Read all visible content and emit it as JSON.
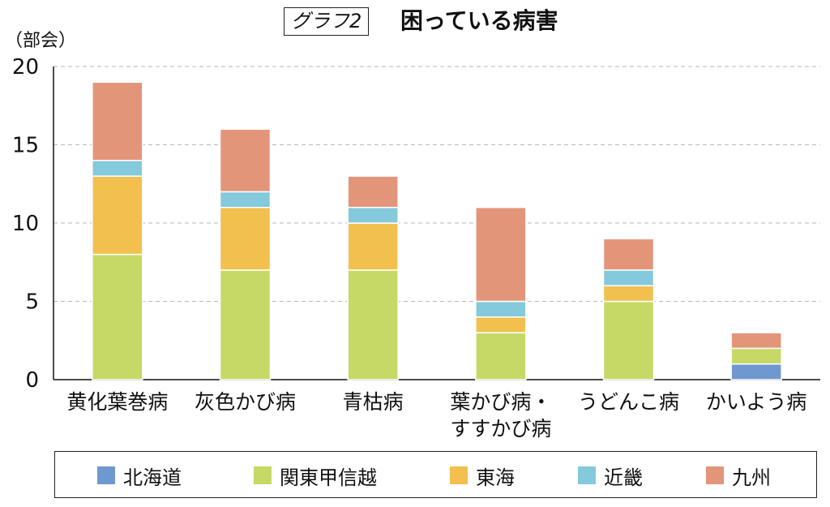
{
  "title": {
    "boxed": "グラフ2",
    "main": "困っている病害"
  },
  "y_unit_label": "（部会）",
  "colors": {
    "北海道": "#7098d0",
    "関東甲信越": "#c6d966",
    "東海": "#f1c04f",
    "近畿": "#84c9dc",
    "九州": "#e3957a"
  },
  "legend": [
    "北海道",
    "関東甲信越",
    "東海",
    "近畿",
    "九州"
  ],
  "chart_data": {
    "type": "bar",
    "stacked": true,
    "categories": [
      "黄化葉巻病",
      "灰色かび病",
      "青枯病",
      "葉かび病・\nすすかび病",
      "うどんこ病",
      "かいよう病"
    ],
    "category_lines": [
      [
        "黄化葉巻病"
      ],
      [
        "灰色かび病"
      ],
      [
        "青枯病"
      ],
      [
        "葉かび病・",
        "すすかび病"
      ],
      [
        "うどんこ病"
      ],
      [
        "かいよう病"
      ]
    ],
    "series": [
      {
        "name": "北海道",
        "values": [
          0,
          0,
          0,
          0,
          0,
          1
        ]
      },
      {
        "name": "関東甲信越",
        "values": [
          8,
          7,
          7,
          3,
          5,
          1
        ]
      },
      {
        "name": "東海",
        "values": [
          5,
          4,
          3,
          1,
          1,
          0
        ]
      },
      {
        "name": "近畿",
        "values": [
          1,
          1,
          1,
          1,
          1,
          0
        ]
      },
      {
        "name": "九州",
        "values": [
          5,
          4,
          2,
          6,
          2,
          1
        ]
      }
    ],
    "ylim": [
      0,
      20
    ],
    "yticks": [
      0,
      5,
      10,
      15,
      20
    ],
    "grid": true,
    "legend_position": "bottom"
  }
}
